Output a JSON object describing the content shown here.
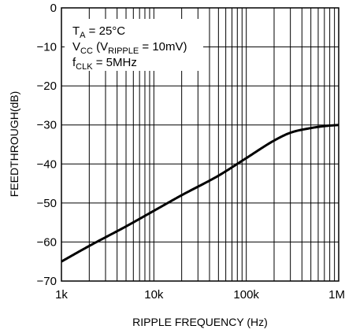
{
  "chart_data": {
    "type": "line",
    "xlabel": "RIPPLE FREQUENCY (Hz)",
    "ylabel": "FEEDTHROUGH(dB)",
    "x_scale": "log",
    "xlim": [
      1000,
      1000000
    ],
    "ylim": [
      -70,
      0
    ],
    "x_ticks": [
      {
        "value": 1000,
        "label": "1k"
      },
      {
        "value": 10000,
        "label": "10k"
      },
      {
        "value": 100000,
        "label": "100k"
      },
      {
        "value": 1000000,
        "label": "1M"
      }
    ],
    "y_ticks": [
      {
        "value": 0,
        "label": "0"
      },
      {
        "value": -10,
        "label": "−10"
      },
      {
        "value": -20,
        "label": "−20"
      },
      {
        "value": -30,
        "label": "−30"
      },
      {
        "value": -40,
        "label": "−40"
      },
      {
        "value": -50,
        "label": "−50"
      },
      {
        "value": -60,
        "label": "−60"
      },
      {
        "value": -70,
        "label": "−70"
      }
    ],
    "grid": true,
    "series": [
      {
        "x": [
          1000,
          2000,
          5000,
          10000,
          20000,
          50000,
          100000,
          200000,
          300000,
          500000,
          700000,
          1000000
        ],
        "y": [
          -65,
          -61,
          -56,
          -52,
          -48,
          -43,
          -38.5,
          -34,
          -32,
          -30.8,
          -30.3,
          -30
        ]
      }
    ],
    "annotations": [
      {
        "main": "T",
        "sub": "A",
        "rest": " = 25°C"
      },
      {
        "main": "V",
        "sub": "CC",
        "rest": " (V",
        "sub2": "RIPPLE",
        "rest2": " = 10mV)"
      },
      {
        "main": "f",
        "sub": "CLK",
        "rest": " = 5MHz"
      }
    ],
    "colors": {
      "line": "#000000",
      "grid": "#000000",
      "background": "#ffffff"
    }
  }
}
